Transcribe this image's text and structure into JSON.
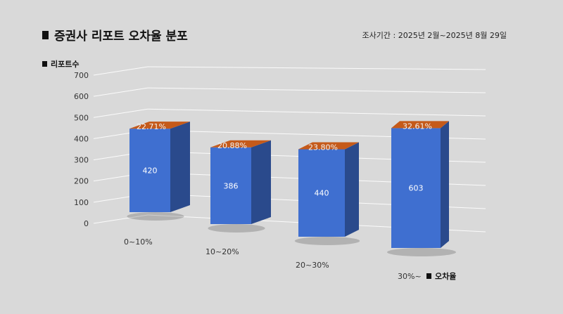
{
  "title": "증권사 리포트 오차율 분포",
  "period": "조사기간 : 2025년 2월~2025년 8월 29일",
  "chart_data": {
    "type": "bar",
    "title": "증권사 리포트 오차율 분포",
    "xlabel": "오차율",
    "ylabel": "리포트수",
    "categories": [
      "0~10%",
      "10~20%",
      "20~30%",
      "30%~"
    ],
    "values": [
      420,
      386,
      440,
      603
    ],
    "percent_labels": [
      "22.71%",
      "20.88%",
      "23.80%",
      "32.61%"
    ],
    "yticks": [
      0,
      100,
      200,
      300,
      400,
      500,
      600,
      700
    ],
    "ylim": [
      0,
      700
    ],
    "grid": true,
    "legend": "none",
    "colors": {
      "front": "#3f6fd0",
      "side": "#2a4a8c",
      "top": "#c55a1a"
    }
  }
}
